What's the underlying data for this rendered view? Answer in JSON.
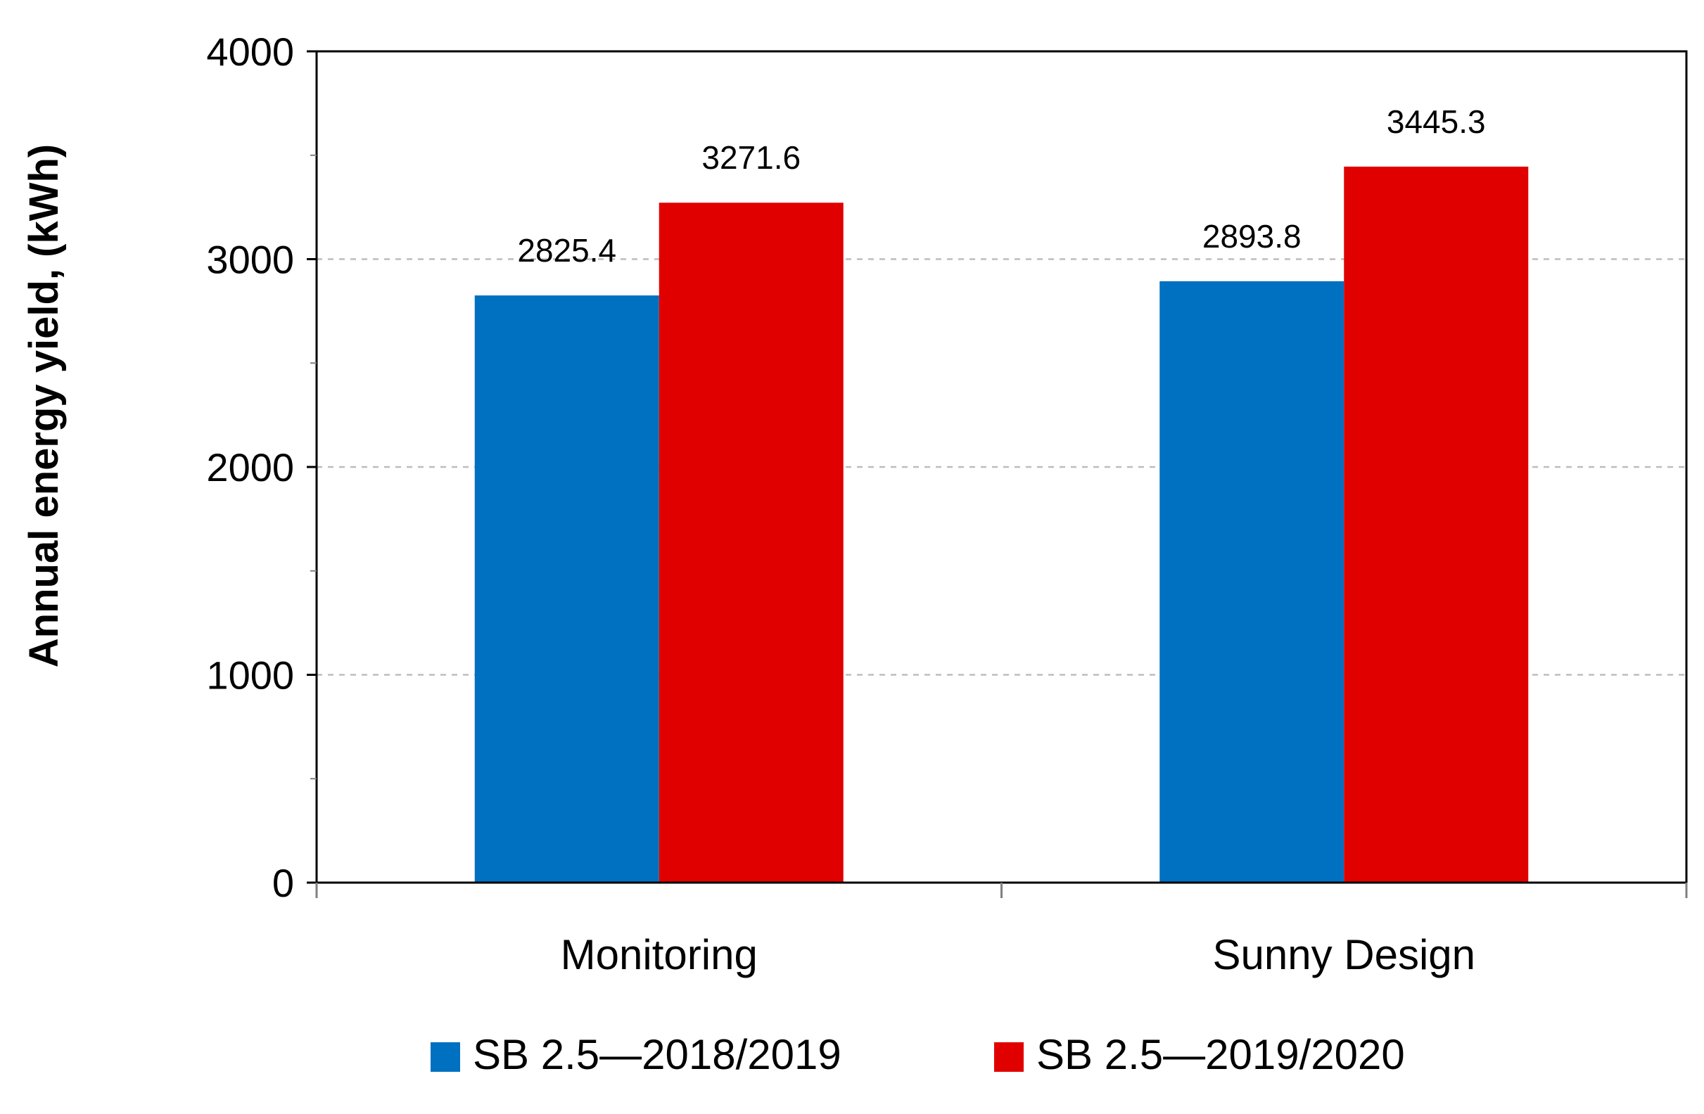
{
  "chart_data": {
    "type": "bar",
    "title": "",
    "xlabel": "",
    "ylabel": "Annual energy yield, (kWh)",
    "categories": [
      "Monitoring",
      "Sunny Design"
    ],
    "series": [
      {
        "name": "SB 2.5—2018/2019",
        "color": "#0070c0",
        "values": [
          2825.4,
          2893.8
        ],
        "labels": [
          "2825.4",
          "2893.8"
        ]
      },
      {
        "name": "SB 2.5—2019/2020",
        "color": "#e00000",
        "values": [
          3271.6,
          3445.3
        ],
        "labels": [
          "3271.6",
          "3445.3"
        ]
      }
    ],
    "ylim": [
      0,
      4000
    ],
    "yticks": [
      0,
      1000,
      2000,
      3000,
      4000
    ],
    "ytick_labels": [
      "0",
      "1000",
      "2000",
      "3000",
      "4000"
    ],
    "minor_tick_step": 500,
    "grid": true,
    "legend_position": "bottom"
  }
}
